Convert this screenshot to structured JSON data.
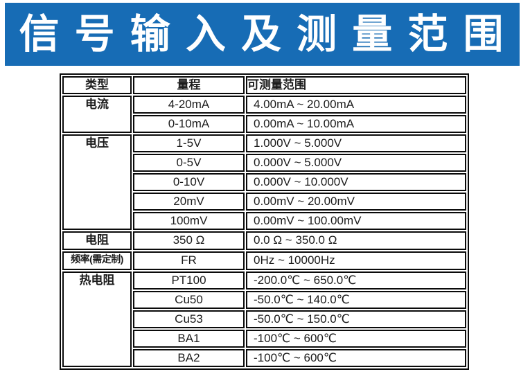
{
  "banner": {
    "title": "信 号 输 入 及 测 量 范 围",
    "bg_color": "#176CB5",
    "text_color": "#FFFFFF"
  },
  "table": {
    "headers": [
      "类型",
      "量程",
      "可测量范围"
    ],
    "border_color": "#0A0A0A",
    "groups": [
      {
        "type": "电流",
        "rows": [
          {
            "range": "4-20mA",
            "measure": "4.00mA ~ 20.00mA"
          },
          {
            "range": "0-10mA",
            "measure": "0.00mA ~ 10.00mA"
          }
        ]
      },
      {
        "type": "电压",
        "rows": [
          {
            "range": "1-5V",
            "measure": "1.000V ~ 5.000V"
          },
          {
            "range": "0-5V",
            "measure": "0.000V ~ 5.000V"
          },
          {
            "range": "0-10V",
            "measure": "0.000V ~ 10.000V"
          },
          {
            "range": "20mV",
            "measure": "0.00mV ~ 20.00mV"
          },
          {
            "range": "100mV",
            "measure": "0.00mV ~ 100.00mV"
          }
        ]
      },
      {
        "type": "电阻",
        "rows": [
          {
            "range": "350 Ω",
            "measure": "0.0 Ω ~ 350.0 Ω"
          }
        ]
      },
      {
        "type": "频率(需定制)",
        "rows": [
          {
            "range": "FR",
            "measure": "0Hz ~ 10000Hz"
          }
        ]
      },
      {
        "type": "热电阻",
        "rows": [
          {
            "range": "PT100",
            "measure": "-200.0℃ ~ 650.0℃"
          },
          {
            "range": "Cu50",
            "measure": "-50.0℃ ~ 140.0℃"
          },
          {
            "range": "Cu53",
            "measure": "-50.0℃ ~ 150.0℃"
          },
          {
            "range": "BA1",
            "measure": "-100℃ ~ 600℃"
          },
          {
            "range": "BA2",
            "measure": "-100℃ ~ 600℃"
          }
        ]
      }
    ]
  }
}
